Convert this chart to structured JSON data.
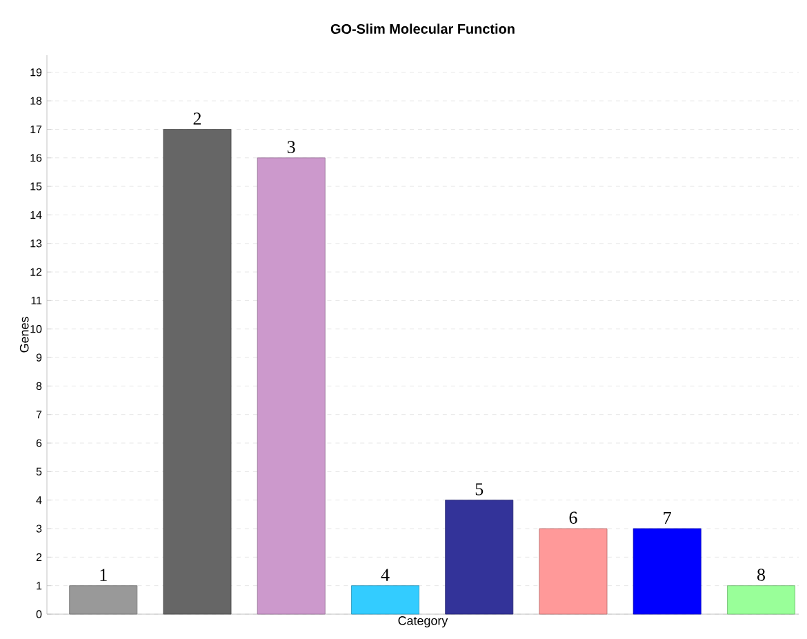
{
  "chart_data": {
    "type": "bar",
    "title": "GO-Slim Molecular Function",
    "xlabel": "Category",
    "ylabel": "Genes",
    "categories": [
      "1",
      "2",
      "3",
      "4",
      "5",
      "6",
      "7",
      "8"
    ],
    "values": [
      1,
      17,
      16,
      1,
      4,
      3,
      3,
      1
    ],
    "colors": [
      "#999999",
      "#666666",
      "#cc99cc",
      "#33ccff",
      "#333399",
      "#ff9999",
      "#0000ff",
      "#99ff99"
    ],
    "ylim": [
      0,
      19.6
    ],
    "yticks": [
      0,
      1,
      2,
      3,
      4,
      5,
      6,
      7,
      8,
      9,
      10,
      11,
      12,
      13,
      14,
      15,
      16,
      17,
      18,
      19
    ],
    "grid": "y"
  }
}
